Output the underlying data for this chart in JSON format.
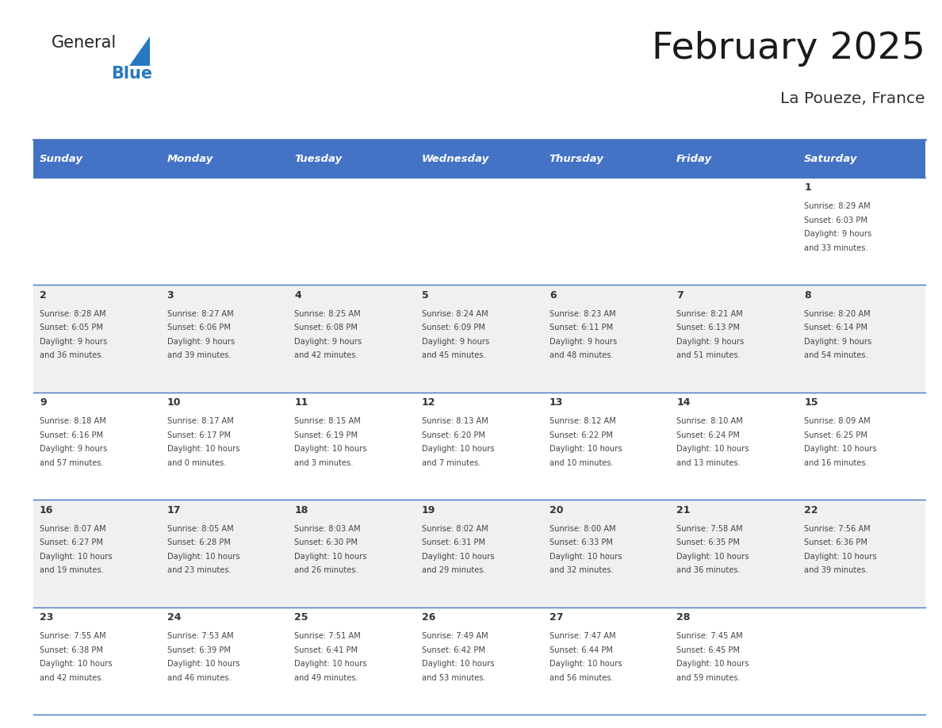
{
  "title": "February 2025",
  "subtitle": "La Poueze, France",
  "days_of_week": [
    "Sunday",
    "Monday",
    "Tuesday",
    "Wednesday",
    "Thursday",
    "Friday",
    "Saturday"
  ],
  "header_bg": "#4472C4",
  "header_text": "#FFFFFF",
  "cell_bg_even": "#FFFFFF",
  "cell_bg_odd": "#F0F0F0",
  "border_color": "#4472C4",
  "day_number_color": "#333333",
  "cell_text_color": "#444444",
  "logo_general_color": "#222222",
  "logo_blue_color": "#2878C0",
  "logo_triangle_color": "#2878C0",
  "calendar_data": [
    [
      null,
      null,
      null,
      null,
      null,
      null,
      {
        "day": 1,
        "sunrise": "8:29 AM",
        "sunset": "6:03 PM",
        "daylight": "9 hours and 33 minutes."
      }
    ],
    [
      {
        "day": 2,
        "sunrise": "8:28 AM",
        "sunset": "6:05 PM",
        "daylight": "9 hours and 36 minutes."
      },
      {
        "day": 3,
        "sunrise": "8:27 AM",
        "sunset": "6:06 PM",
        "daylight": "9 hours and 39 minutes."
      },
      {
        "day": 4,
        "sunrise": "8:25 AM",
        "sunset": "6:08 PM",
        "daylight": "9 hours and 42 minutes."
      },
      {
        "day": 5,
        "sunrise": "8:24 AM",
        "sunset": "6:09 PM",
        "daylight": "9 hours and 45 minutes."
      },
      {
        "day": 6,
        "sunrise": "8:23 AM",
        "sunset": "6:11 PM",
        "daylight": "9 hours and 48 minutes."
      },
      {
        "day": 7,
        "sunrise": "8:21 AM",
        "sunset": "6:13 PM",
        "daylight": "9 hours and 51 minutes."
      },
      {
        "day": 8,
        "sunrise": "8:20 AM",
        "sunset": "6:14 PM",
        "daylight": "9 hours and 54 minutes."
      }
    ],
    [
      {
        "day": 9,
        "sunrise": "8:18 AM",
        "sunset": "6:16 PM",
        "daylight": "9 hours and 57 minutes."
      },
      {
        "day": 10,
        "sunrise": "8:17 AM",
        "sunset": "6:17 PM",
        "daylight": "10 hours and 0 minutes."
      },
      {
        "day": 11,
        "sunrise": "8:15 AM",
        "sunset": "6:19 PM",
        "daylight": "10 hours and 3 minutes."
      },
      {
        "day": 12,
        "sunrise": "8:13 AM",
        "sunset": "6:20 PM",
        "daylight": "10 hours and 7 minutes."
      },
      {
        "day": 13,
        "sunrise": "8:12 AM",
        "sunset": "6:22 PM",
        "daylight": "10 hours and 10 minutes."
      },
      {
        "day": 14,
        "sunrise": "8:10 AM",
        "sunset": "6:24 PM",
        "daylight": "10 hours and 13 minutes."
      },
      {
        "day": 15,
        "sunrise": "8:09 AM",
        "sunset": "6:25 PM",
        "daylight": "10 hours and 16 minutes."
      }
    ],
    [
      {
        "day": 16,
        "sunrise": "8:07 AM",
        "sunset": "6:27 PM",
        "daylight": "10 hours and 19 minutes."
      },
      {
        "day": 17,
        "sunrise": "8:05 AM",
        "sunset": "6:28 PM",
        "daylight": "10 hours and 23 minutes."
      },
      {
        "day": 18,
        "sunrise": "8:03 AM",
        "sunset": "6:30 PM",
        "daylight": "10 hours and 26 minutes."
      },
      {
        "day": 19,
        "sunrise": "8:02 AM",
        "sunset": "6:31 PM",
        "daylight": "10 hours and 29 minutes."
      },
      {
        "day": 20,
        "sunrise": "8:00 AM",
        "sunset": "6:33 PM",
        "daylight": "10 hours and 32 minutes."
      },
      {
        "day": 21,
        "sunrise": "7:58 AM",
        "sunset": "6:35 PM",
        "daylight": "10 hours and 36 minutes."
      },
      {
        "day": 22,
        "sunrise": "7:56 AM",
        "sunset": "6:36 PM",
        "daylight": "10 hours and 39 minutes."
      }
    ],
    [
      {
        "day": 23,
        "sunrise": "7:55 AM",
        "sunset": "6:38 PM",
        "daylight": "10 hours and 42 minutes."
      },
      {
        "day": 24,
        "sunrise": "7:53 AM",
        "sunset": "6:39 PM",
        "daylight": "10 hours and 46 minutes."
      },
      {
        "day": 25,
        "sunrise": "7:51 AM",
        "sunset": "6:41 PM",
        "daylight": "10 hours and 49 minutes."
      },
      {
        "day": 26,
        "sunrise": "7:49 AM",
        "sunset": "6:42 PM",
        "daylight": "10 hours and 53 minutes."
      },
      {
        "day": 27,
        "sunrise": "7:47 AM",
        "sunset": "6:44 PM",
        "daylight": "10 hours and 56 minutes."
      },
      {
        "day": 28,
        "sunrise": "7:45 AM",
        "sunset": "6:45 PM",
        "daylight": "10 hours and 59 minutes."
      },
      null
    ]
  ]
}
